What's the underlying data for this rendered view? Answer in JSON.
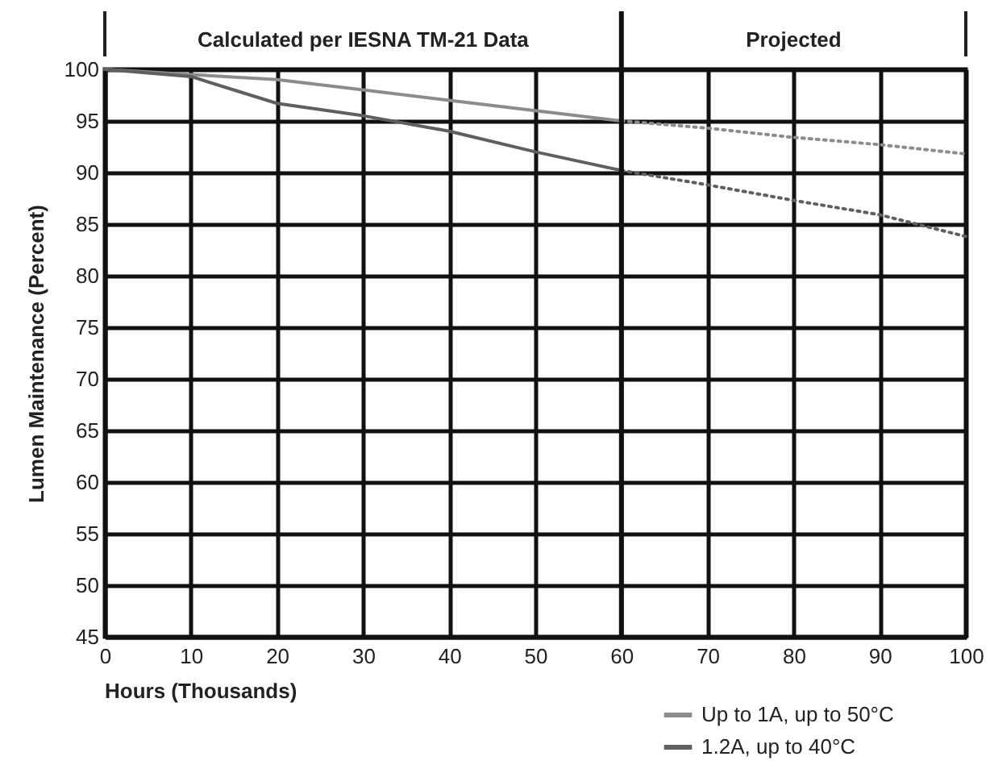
{
  "chart_data": {
    "type": "line",
    "xlabel": "Hours (Thousands)",
    "ylabel": "Lumen Maintenance (Percent)",
    "xlim": [
      0,
      100
    ],
    "xticks": [
      0,
      10,
      20,
      30,
      40,
      50,
      60,
      70,
      80,
      90,
      100
    ],
    "ylim": [
      45,
      100
    ],
    "yticks": [
      45,
      50,
      55,
      60,
      65,
      70,
      75,
      80,
      85,
      90,
      95,
      100
    ],
    "grid": true,
    "legend": "bottom right",
    "marker": "none",
    "annotations": [
      "Calculated per IESNA TM-21 Data",
      "Projected"
    ],
    "ref_lines": [
      {
        "axis": "x",
        "value": 60,
        "color": "#111111"
      }
    ],
    "series": [
      {
        "name": "Up to 1A, up to  50°C",
        "color": "#8c8c8c",
        "line_style": "solid",
        "x": [
          0,
          10,
          20,
          30,
          40,
          50,
          60
        ],
        "values": [
          100,
          99.5,
          99,
          98,
          97,
          96,
          95
        ]
      },
      {
        "name": "1.2A, up to  40°C",
        "color": "#5f5f5f",
        "line_style": "solid",
        "x": [
          0,
          10,
          20,
          30,
          40,
          50,
          60
        ],
        "values": [
          100,
          99.3,
          96.7,
          95.5,
          94,
          92,
          90.2
        ]
      },
      {
        "color": "#8c8c8c",
        "line_style": "dotted",
        "x": [
          60,
          70,
          80,
          90,
          100
        ],
        "values": [
          95,
          94.3,
          93.4,
          92.7,
          91.8
        ]
      },
      {
        "color": "#5f5f5f",
        "line_style": "dotted",
        "x": [
          60,
          70,
          80,
          90,
          100
        ],
        "values": [
          90.2,
          88.8,
          87.3,
          85.9,
          83.8
        ]
      }
    ]
  }
}
